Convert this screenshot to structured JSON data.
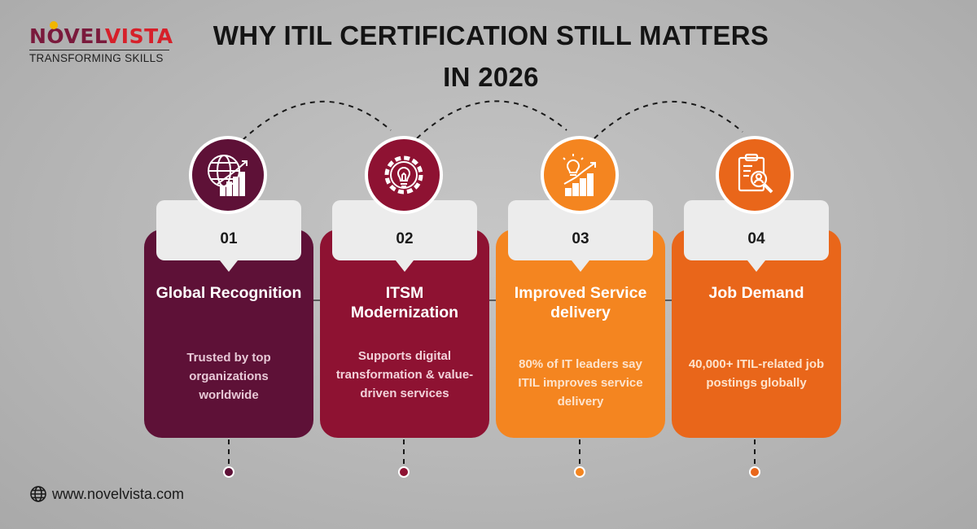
{
  "brand": {
    "name_part1": "NOVEL",
    "name_part2": "VISTA",
    "tagline": "TRANSFORMING SKILLS"
  },
  "title": {
    "line1": "WHY ITIL CERTIFICATION STILL MATTERS",
    "line2": "IN 2026"
  },
  "cards": [
    {
      "number": "01",
      "title": "Global Recognition",
      "description": "Trusted by top organizations worldwide",
      "color": "#5e1137",
      "text_color": "#e7c8d6",
      "icon": "globe-growth-icon"
    },
    {
      "number": "02",
      "title": "ITSM Modernization",
      "description": "Supports digital transformation & value-driven services",
      "color": "#8e1232",
      "text_color": "#f2d2da",
      "icon": "gear-bulb-icon"
    },
    {
      "number": "03",
      "title": "Improved Service delivery",
      "description": "80% of IT leaders say ITIL improves service delivery",
      "color": "#f48520",
      "text_color": "#fde3cc",
      "icon": "idea-growth-icon"
    },
    {
      "number": "04",
      "title": "Job Demand",
      "description": "40,000+ ITIL-related job postings globally",
      "color": "#e9661a",
      "text_color": "#fde3cc",
      "icon": "job-search-icon"
    }
  ],
  "footer": {
    "website": "www.novelvista.com",
    "icon": "globe-icon"
  }
}
